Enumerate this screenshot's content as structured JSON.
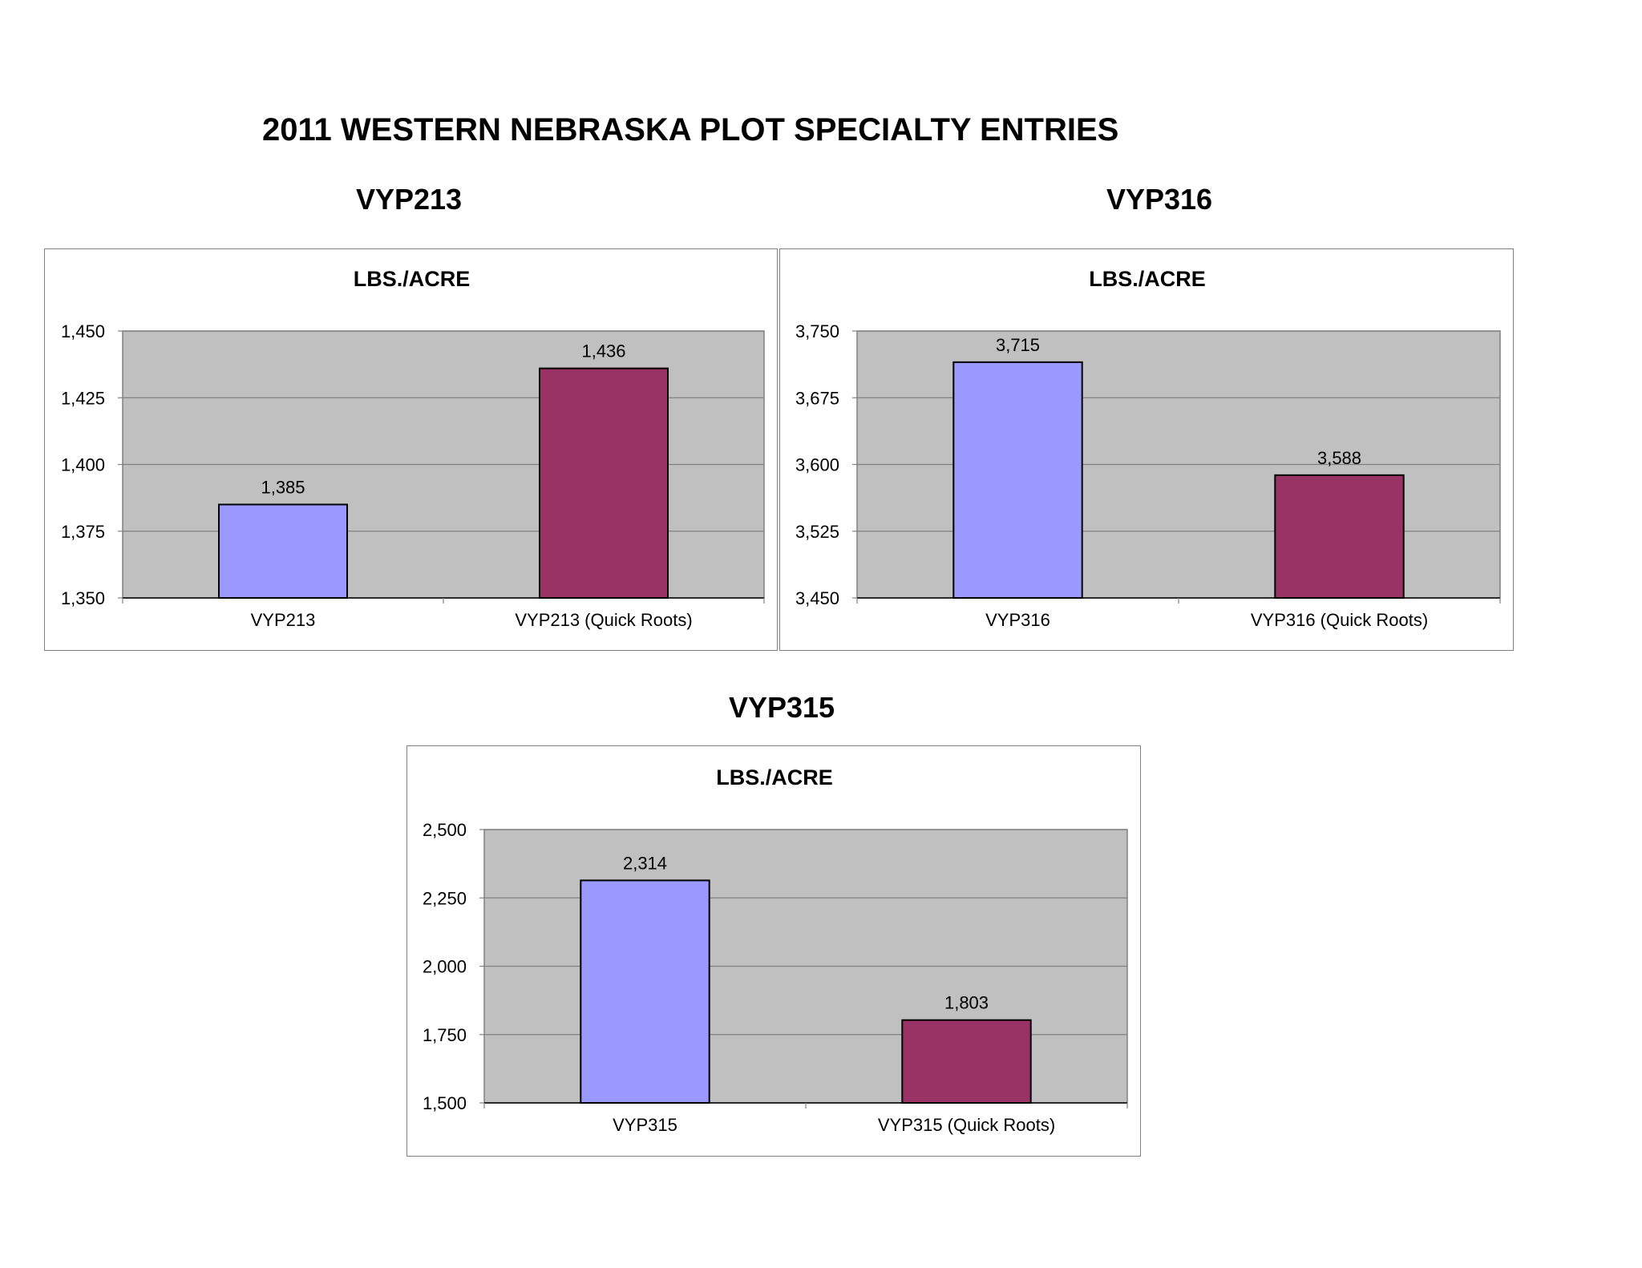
{
  "page": {
    "title": "2011 WESTERN NEBRASKA PLOT SPECIALTY ENTRIES"
  },
  "colors": {
    "plot_area": "#c0c0c0",
    "standard_bar": "#9999ff",
    "quick_roots_bar": "#993366",
    "gridline": "#808080"
  },
  "chart_data": [
    {
      "heading": "VYP213",
      "type": "bar",
      "title": "LBS./ACRE",
      "categories": [
        "VYP213",
        "VYP213 (Quick Roots)"
      ],
      "values": [
        1385,
        1436
      ],
      "value_labels": [
        "1,385",
        "1,436"
      ],
      "ylim": [
        1350,
        1450
      ],
      "yticks": [
        1350,
        1375,
        1400,
        1425,
        1450
      ],
      "ytick_labels": [
        "1,350",
        "1,375",
        "1,400",
        "1,425",
        "1,450"
      ],
      "grid": true,
      "legend": "none"
    },
    {
      "heading": "VYP316",
      "type": "bar",
      "title": "LBS./ACRE",
      "categories": [
        "VYP316",
        "VYP316 (Quick Roots)"
      ],
      "values": [
        3715,
        3588
      ],
      "value_labels": [
        "3,715",
        "3,588"
      ],
      "ylim": [
        3450,
        3750
      ],
      "yticks": [
        3450,
        3525,
        3600,
        3675,
        3750
      ],
      "ytick_labels": [
        "3,450",
        "3,525",
        "3,600",
        "3,675",
        "3,750"
      ],
      "grid": true,
      "legend": "none"
    },
    {
      "heading": "VYP315",
      "type": "bar",
      "title": "LBS./ACRE",
      "categories": [
        "VYP315",
        "VYP315 (Quick Roots)"
      ],
      "values": [
        2314,
        1803
      ],
      "value_labels": [
        "2,314",
        "1,803"
      ],
      "ylim": [
        1500,
        2500
      ],
      "yticks": [
        1500,
        1750,
        2000,
        2250,
        2500
      ],
      "ytick_labels": [
        "1,500",
        "1,750",
        "2,000",
        "2,250",
        "2,500"
      ],
      "grid": true,
      "legend": "none"
    }
  ]
}
